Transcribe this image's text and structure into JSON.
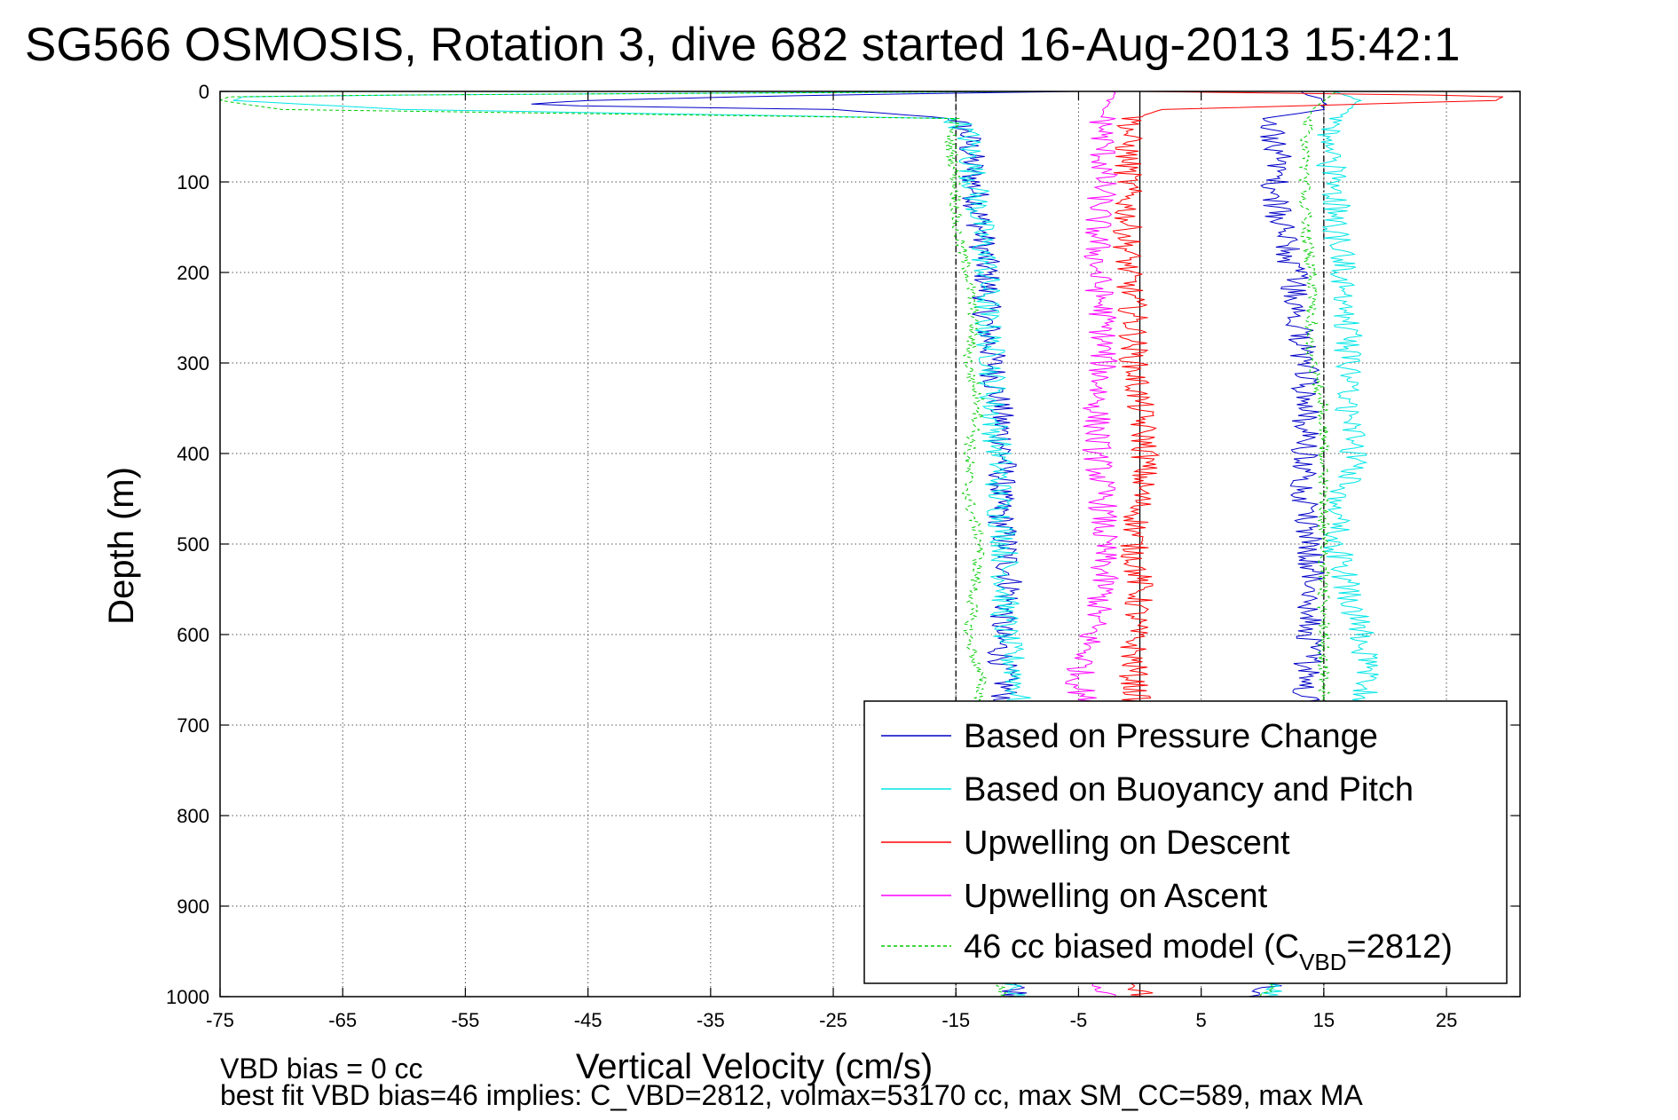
{
  "figure": {
    "title": "SG566 OSMOSIS, Rotation 3, dive 682 started 16-Aug-2013 15:42:1",
    "footer_line1": "VBD bias = 0 cc",
    "footer_line2": "best fit VBD bias=46 implies: C_VBD=2812, volmax=53170 cc, max SM_CC=589, max MA"
  },
  "chart_data": {
    "type": "line",
    "title": "SG566 OSMOSIS, Rotation 3, dive 682 started 16-Aug-2013 15:42:1",
    "xlabel": "Vertical Velocity (cm/s)",
    "ylabel": "Depth (m)",
    "xlim": [
      -75,
      31
    ],
    "ylim": [
      0,
      1000
    ],
    "y_reversed": true,
    "grid": true,
    "xticks": [
      -75,
      -65,
      -55,
      -45,
      -35,
      -25,
      -15,
      -5,
      5,
      15,
      25
    ],
    "yticks": [
      0,
      100,
      200,
      300,
      400,
      500,
      600,
      700,
      800,
      900,
      1000
    ],
    "reference_lines": [
      {
        "x": -15,
        "style": "dashed",
        "color": "#000000"
      },
      {
        "x": 0,
        "style": "solid",
        "color": "#000000"
      },
      {
        "x": 15,
        "style": "dashed",
        "color": "#000000"
      }
    ],
    "legend": {
      "location": "lower-right",
      "entries": [
        {
          "label": "Based on Pressure Change",
          "color": "#0000c8",
          "style": "solid"
        },
        {
          "label": "Based on Buoyancy and Pitch",
          "color": "#00e6e6",
          "style": "solid"
        },
        {
          "label": "Upwelling on Descent",
          "color": "#ff0000",
          "style": "solid"
        },
        {
          "label": "Upwelling on Ascent",
          "color": "#ff00ff",
          "style": "solid"
        },
        {
          "label_main": "46 cc biased model (C",
          "label_sub": "VBD",
          "label_tail": "=2812)",
          "color": "#00cc00",
          "style": "dashed"
        }
      ]
    },
    "series": [
      {
        "name": "Based on Pressure Change",
        "color": "#0000c8",
        "descent": {
          "depth": [
            0,
            5,
            10,
            15,
            20,
            30,
            50,
            100,
            150,
            200,
            250,
            300,
            350,
            400,
            450,
            500,
            550,
            600,
            650,
            700,
            800,
            900,
            1000
          ],
          "velocity": [
            -5,
            -30,
            -45,
            -51,
            -25,
            -15,
            -14,
            -13.5,
            -13,
            -12.5,
            -12.5,
            -12,
            -11.5,
            -11,
            -11.5,
            -11,
            -10.5,
            -11.5,
            -11,
            -11,
            -11,
            -11,
            -10
          ]
        },
        "ascent": {
          "depth": [
            1000,
            900,
            800,
            700,
            650,
            600,
            550,
            500,
            450,
            400,
            350,
            300,
            250,
            200,
            150,
            120,
            100,
            80,
            50,
            30,
            20,
            10,
            5,
            0
          ],
          "velocity": [
            10,
            13.5,
            13.5,
            13.5,
            13.5,
            14,
            14,
            14,
            13.5,
            13.5,
            13.5,
            13.5,
            13,
            12.5,
            11.5,
            11,
            11,
            11.5,
            11,
            10,
            15,
            15,
            14,
            13
          ]
        }
      },
      {
        "name": "Based on Buoyancy and Pitch",
        "color": "#00e6e6",
        "descent": {
          "depth": [
            0,
            5,
            10,
            20,
            30,
            50,
            100,
            150,
            200,
            250,
            300,
            350,
            400,
            450,
            500,
            550,
            600,
            650,
            700,
            800,
            900,
            1000
          ],
          "velocity": [
            -8,
            -73,
            -74,
            -60,
            -15,
            -14,
            -13.5,
            -13,
            -12.5,
            -12.5,
            -12,
            -12,
            -11.5,
            -11.5,
            -11,
            -11,
            -11,
            -10,
            -10,
            -10,
            -10,
            -10
          ]
        },
        "ascent": {
          "depth": [
            1000,
            900,
            800,
            700,
            650,
            600,
            550,
            500,
            450,
            400,
            350,
            300,
            250,
            200,
            150,
            100,
            50,
            20,
            10,
            0
          ],
          "velocity": [
            10,
            18.5,
            18.5,
            18.5,
            18.5,
            18,
            17,
            16,
            16.5,
            17.5,
            17,
            17,
            17,
            16.5,
            16,
            16,
            15,
            17,
            18,
            16
          ]
        }
      },
      {
        "name": "Upwelling on Descent",
        "color": "#ff0000",
        "depth": [
          0,
          5,
          10,
          20,
          30,
          50,
          100,
          150,
          200,
          250,
          300,
          350,
          400,
          450,
          500,
          550,
          600,
          650,
          700,
          800,
          900,
          1000
        ],
        "velocity": [
          0,
          30,
          29,
          2,
          -0.5,
          -1,
          -1,
          -1,
          -1,
          -0.5,
          -0.5,
          0,
          0.5,
          0,
          -0.5,
          0,
          -0.5,
          -0.5,
          0,
          0,
          0,
          0
        ]
      },
      {
        "name": "Upwelling on Ascent",
        "color": "#ff00ff",
        "depth": [
          0,
          20,
          50,
          100,
          150,
          200,
          250,
          300,
          350,
          400,
          450,
          500,
          550,
          600,
          650,
          700,
          800,
          900,
          1000
        ],
        "velocity": [
          -2,
          -3,
          -3,
          -3,
          -3.5,
          -3.5,
          -3,
          -3,
          -3.5,
          -3.5,
          -3,
          -3,
          -3,
          -4,
          -5,
          -4,
          -4,
          -4,
          -3
        ]
      },
      {
        "name": "46 cc biased model (C_VBD=2812)",
        "color": "#00cc00",
        "style": "dashed",
        "descent": {
          "depth": [
            0,
            5,
            10,
            20,
            30,
            50,
            100,
            150,
            200,
            250,
            300,
            350,
            400,
            450,
            500,
            550,
            600,
            650,
            700,
            800,
            900,
            1000
          ],
          "velocity": [
            -8,
            -74,
            -75,
            -70,
            -15,
            -15.5,
            -15,
            -15,
            -14,
            -13.5,
            -14,
            -13,
            -14,
            -14,
            -13,
            -13.5,
            -14,
            -13,
            -13,
            -13,
            -13,
            -11
          ]
        },
        "ascent": {
          "depth": [
            1000,
            900,
            800,
            700,
            650,
            600,
            550,
            500,
            450,
            400,
            350,
            300,
            250,
            200,
            150,
            100,
            50,
            20,
            0
          ],
          "velocity": [
            10,
            15,
            15,
            15,
            15,
            15,
            15,
            15,
            15,
            15,
            15,
            14,
            14,
            14,
            13.5,
            13.5,
            13.5,
            14,
            16
          ]
        }
      }
    ]
  }
}
